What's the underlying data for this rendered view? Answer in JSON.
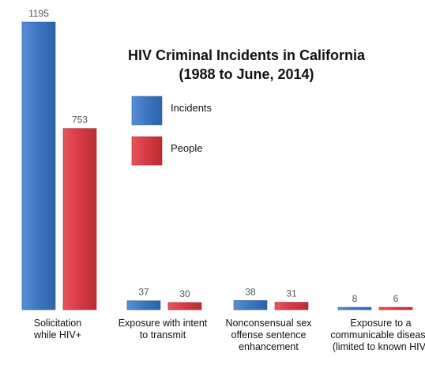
{
  "chart_data": {
    "type": "bar",
    "title": [
      "HIV Criminal Incidents in California",
      "(1988 to June, 2014)"
    ],
    "categories": [
      [
        "Solicitation",
        "while HIV+"
      ],
      [
        "Exposure with intent",
        "to transmit"
      ],
      [
        "Nonconsensual sex",
        "offense sentence",
        "enhancement"
      ],
      [
        "Exposure to a",
        "communicable disease",
        "(limited to known HIV)"
      ]
    ],
    "series": [
      {
        "name": "Incidents",
        "color": "#3d77c4",
        "values": [
          1195,
          37,
          38,
          8
        ]
      },
      {
        "name": "People",
        "color": "#d93b43",
        "values": [
          753,
          30,
          31,
          6
        ]
      }
    ],
    "ylim": [
      0,
      1195
    ],
    "grid": false,
    "legend_position": "inside-top-center",
    "data_labels": true
  }
}
